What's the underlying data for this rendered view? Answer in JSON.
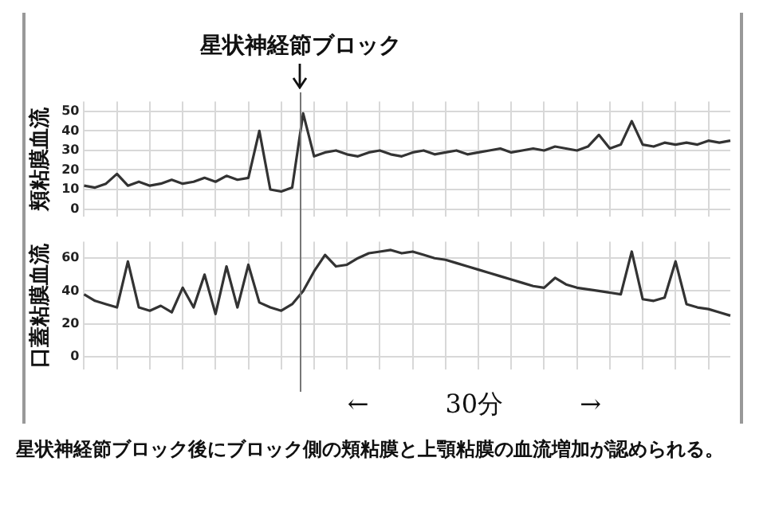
{
  "chart_data": [
    {
      "type": "line",
      "title": "星状神経節ブロック",
      "ylabel": "頬粘膜血流",
      "categories": [
        null,
        null,
        null,
        null,
        null,
        null,
        null,
        null,
        null,
        null,
        null,
        null,
        null,
        null,
        null,
        null,
        null,
        null,
        null,
        null,
        null,
        null,
        null,
        null,
        null,
        null,
        null,
        null,
        null,
        null,
        null,
        null,
        null,
        null,
        null,
        null,
        null,
        null,
        null,
        null,
        null,
        null,
        null,
        null,
        null,
        null,
        null,
        null,
        null,
        null,
        null,
        null,
        null,
        null,
        null,
        null,
        null,
        null,
        null,
        null
      ],
      "series": [
        {
          "color": "#333333",
          "values": [
            12,
            11,
            13,
            18,
            12,
            14,
            12,
            13,
            15,
            13,
            14,
            16,
            14,
            17,
            15,
            16,
            40,
            10,
            9,
            11,
            49,
            27,
            29,
            30,
            28,
            27,
            29,
            30,
            28,
            27,
            29,
            30,
            28,
            29,
            30,
            28,
            29,
            30,
            31,
            29,
            30,
            31,
            30,
            32,
            31,
            30,
            32,
            38,
            31,
            33,
            45,
            33,
            32,
            34,
            33,
            34,
            33,
            35,
            34,
            35
          ]
        }
      ],
      "ylim": [
        -4,
        55
      ],
      "yticks": [
        0,
        10,
        20,
        30,
        40,
        50
      ],
      "grid": true,
      "tick_labels": "y",
      "line_style": "solid",
      "marker": "none"
    },
    {
      "type": "line",
      "ylabel": "口蓋粘膜血流",
      "categories": [
        null,
        null,
        null,
        null,
        null,
        null,
        null,
        null,
        null,
        null,
        null,
        null,
        null,
        null,
        null,
        null,
        null,
        null,
        null,
        null,
        null,
        null,
        null,
        null,
        null,
        null,
        null,
        null,
        null,
        null,
        null,
        null,
        null,
        null,
        null,
        null,
        null,
        null,
        null,
        null,
        null,
        null,
        null,
        null,
        null,
        null,
        null,
        null,
        null,
        null,
        null,
        null,
        null,
        null,
        null,
        null,
        null,
        null,
        null,
        null
      ],
      "series": [
        {
          "color": "#333333",
          "values": [
            38,
            34,
            32,
            30,
            58,
            30,
            28,
            31,
            27,
            42,
            30,
            50,
            26,
            55,
            30,
            56,
            33,
            30,
            28,
            32,
            40,
            52,
            62,
            55,
            56,
            60,
            63,
            64,
            65,
            63,
            64,
            62,
            60,
            59,
            57,
            55,
            53,
            51,
            49,
            47,
            45,
            43,
            42,
            48,
            44,
            42,
            41,
            40,
            39,
            38,
            64,
            35,
            34,
            36,
            58,
            32,
            30,
            29,
            27,
            25
          ]
        }
      ],
      "ylim": [
        -8,
        70
      ],
      "yticks": [
        0,
        20,
        40,
        60
      ],
      "grid": true,
      "tick_labels": "y",
      "line_style": "solid",
      "marker": "none",
      "annotations": [
        "←　　　30分　　　→",
        "星状神経節ブロック後にブロック側の頬粘膜と上顎粘膜の血流増加が認められる。"
      ]
    }
  ]
}
